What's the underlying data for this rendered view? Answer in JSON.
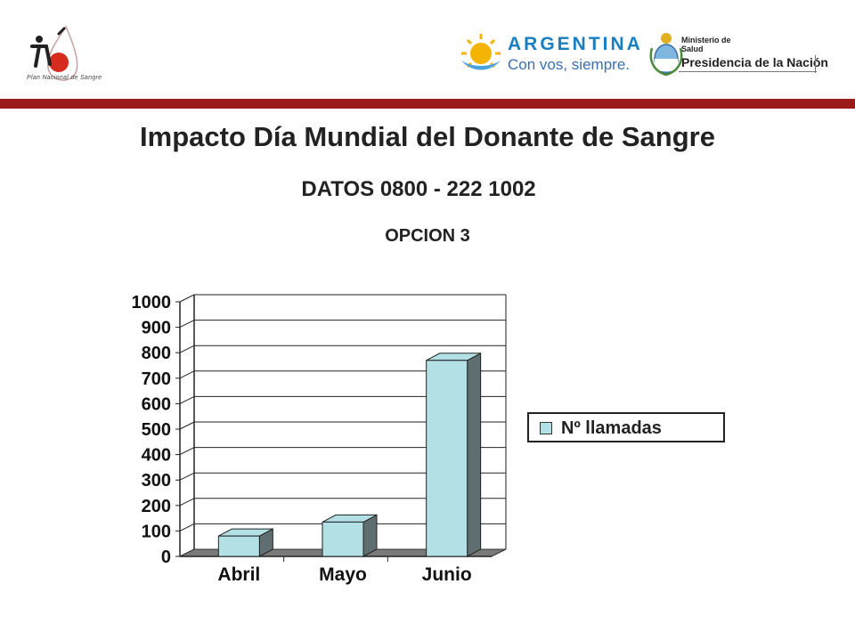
{
  "header": {
    "plan_logo_text": "Plan Nacional de Sangre",
    "argentina_word": "ARGENTINA",
    "argentina_slogan": "Con vos, siempre.",
    "ministry_line1": "Ministerio de",
    "ministry_line2": "Salud",
    "ministry_line3": "Presidencia de la Nación"
  },
  "slide": {
    "title": "Impacto Día Mundial del Donante de Sangre",
    "subtitle": "DATOS 0800 - 222 1002",
    "option": "OPCION 3"
  },
  "colors": {
    "accent_bar": "#9b1b1b",
    "bar_front": "#b3e0e4",
    "bar_side": "#5f6e70",
    "floor": "#7a7a7a"
  },
  "chart_data": {
    "type": "bar",
    "categories": [
      "Abril",
      "Mayo",
      "Junio"
    ],
    "series": [
      {
        "name": "Nº llamadas",
        "values": [
          80,
          135,
          770
        ]
      }
    ],
    "ylim": [
      0,
      1000
    ],
    "yticks": [
      0,
      100,
      200,
      300,
      400,
      500,
      600,
      700,
      800,
      900,
      1000
    ],
    "grid": true,
    "legend": "right",
    "three_d": true
  }
}
